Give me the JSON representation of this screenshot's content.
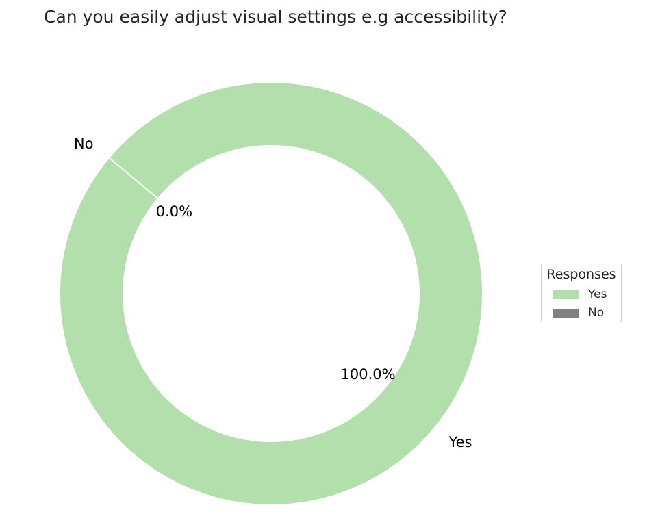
{
  "chart_data": {
    "type": "pie",
    "title": "Can you easily adjust visual settings e.g accessibility?",
    "donut": true,
    "slices": [
      {
        "label": "Yes",
        "value": 100.0,
        "pct_label": "100.0%",
        "color": "#b2dfab"
      },
      {
        "label": "No",
        "value": 0.0,
        "pct_label": "0.0%",
        "color": "#808080"
      }
    ],
    "legend": {
      "title": "Responses",
      "placement": "center-right",
      "entries": [
        "Yes",
        "No"
      ]
    }
  }
}
